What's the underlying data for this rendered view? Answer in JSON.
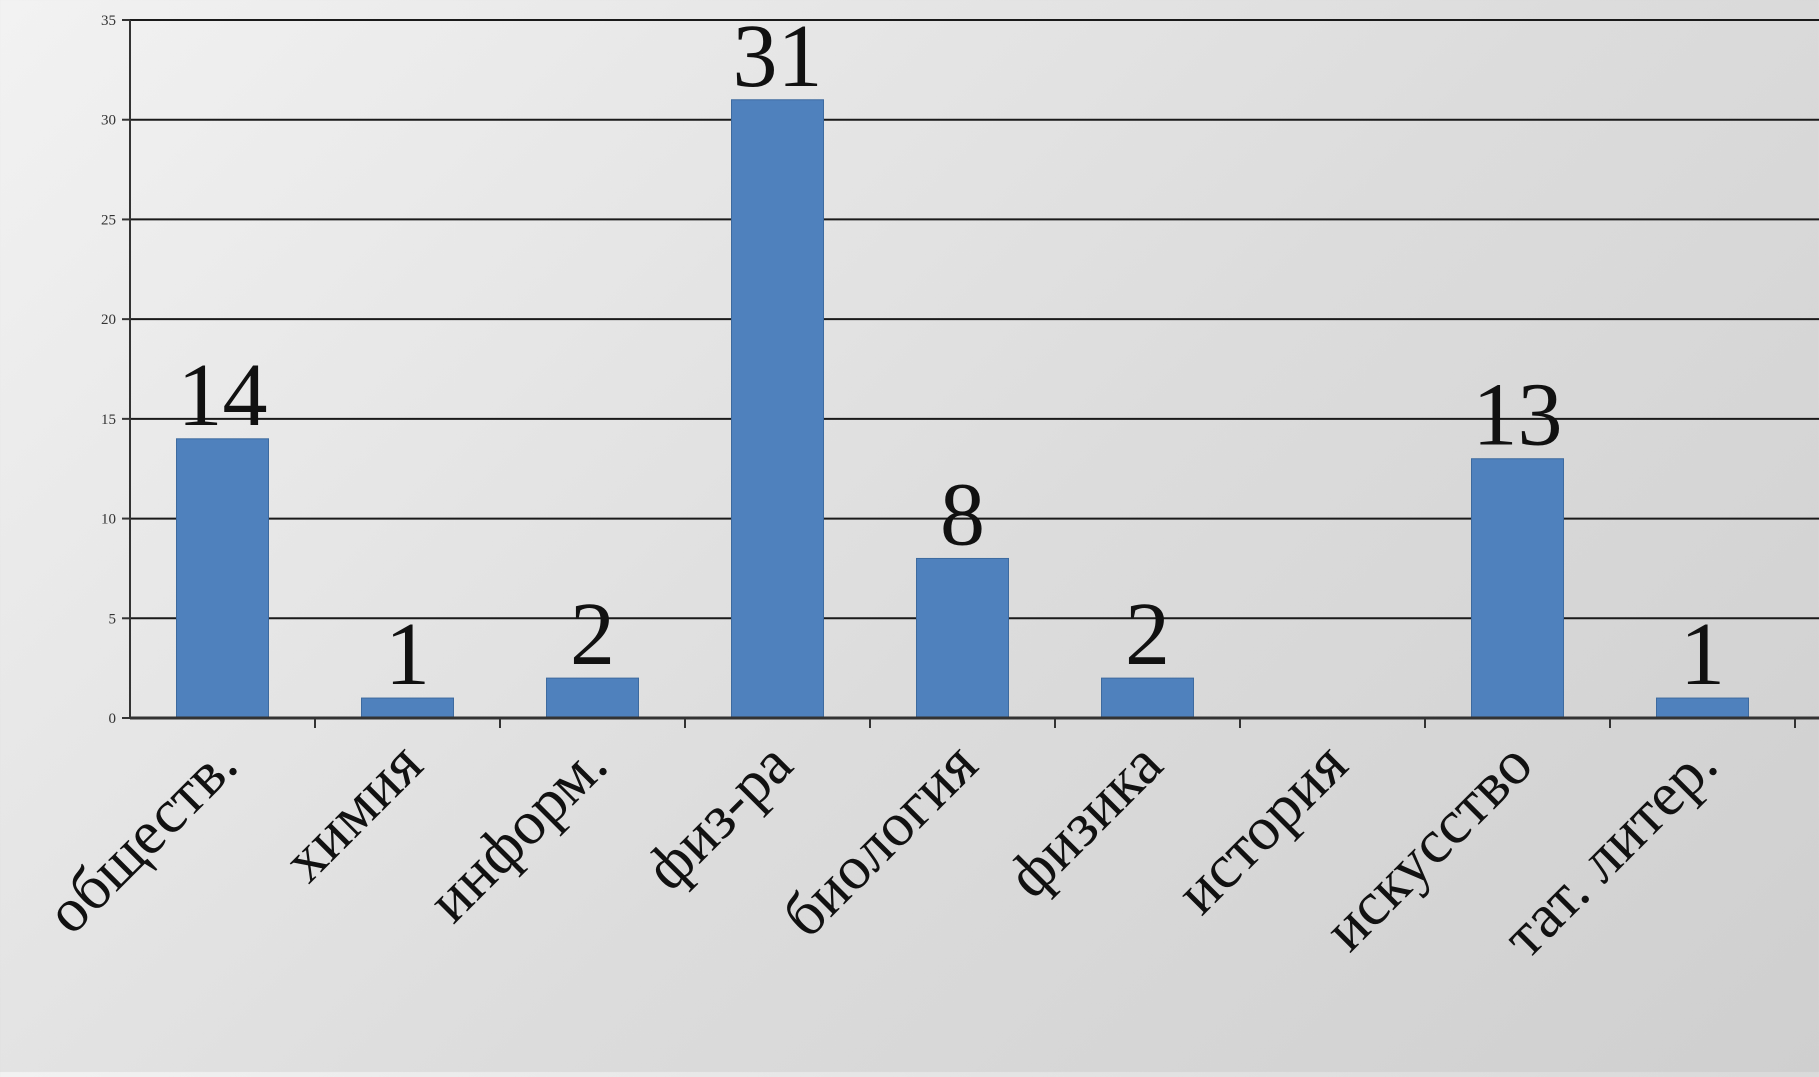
{
  "chart_data": {
    "type": "bar",
    "categories": [
      "обществ.",
      "химия",
      "информ.",
      "физ-ра",
      "биология",
      "физика",
      "история",
      "искусство",
      "тат. литер."
    ],
    "values": [
      14,
      1,
      2,
      31,
      8,
      2,
      0,
      13,
      1
    ],
    "data_labels": [
      "14",
      "1",
      "2",
      "31",
      "8",
      "2",
      "",
      "13",
      "1"
    ],
    "ylim": [
      0,
      35
    ],
    "yticks": [
      0,
      5,
      10,
      15,
      20,
      25,
      30,
      35
    ],
    "title": "",
    "xlabel": "",
    "ylabel": "",
    "grid": true,
    "colors": {
      "bar": "#4f81bd",
      "bar_edge": "#3d6a9f",
      "grid": "#1a1a1a",
      "axis": "#333333"
    }
  }
}
